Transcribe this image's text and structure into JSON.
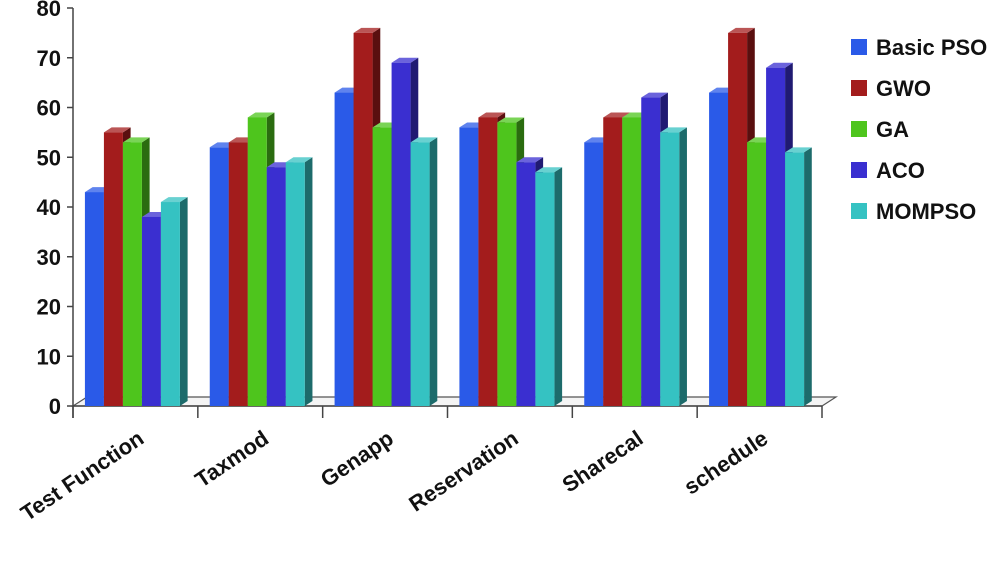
{
  "chart_data": {
    "type": "bar",
    "title": "",
    "xlabel": "",
    "ylabel": "",
    "ylim": [
      0,
      80
    ],
    "yticks": [
      0,
      10,
      20,
      30,
      40,
      50,
      60,
      70,
      80
    ],
    "grid": false,
    "legend_position": "right",
    "categories": [
      "Test Function",
      "Taxmod",
      "Genapp",
      "Reservation",
      "Sharecal",
      "schedule"
    ],
    "series": [
      {
        "name": "Basic PSO",
        "color": "#2a5ae8",
        "values": [
          43,
          52,
          63,
          56,
          53,
          63
        ]
      },
      {
        "name": "GWO",
        "color": "#a31c1c",
        "values": [
          55,
          53,
          75,
          58,
          58,
          75
        ]
      },
      {
        "name": "GA",
        "color": "#4ec51d",
        "values": [
          53,
          58,
          56,
          57,
          58,
          53
        ]
      },
      {
        "name": "ACO",
        "color": "#3a2fd0",
        "values": [
          38,
          48,
          69,
          49,
          62,
          68
        ]
      },
      {
        "name": "MOMPSO",
        "color": "#35c2c2",
        "values": [
          41,
          49,
          53,
          47,
          55,
          51
        ]
      }
    ]
  }
}
